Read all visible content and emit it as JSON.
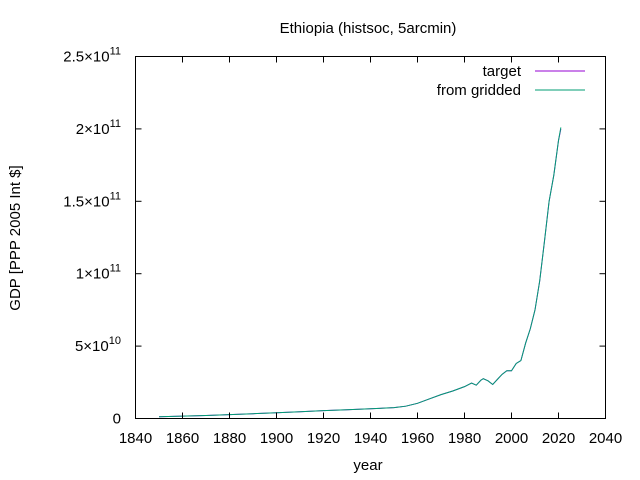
{
  "chart_data": {
    "type": "line",
    "title": "Ethiopia (histsoc, 5arcmin)",
    "xlabel": "year",
    "ylabel": "GDP [PPP 2005 Int $]",
    "xlim": [
      1840,
      2040
    ],
    "ylim": [
      0,
      250000000000
    ],
    "x_ticks": [
      1840,
      1860,
      1880,
      1900,
      1920,
      1940,
      1960,
      1980,
      2000,
      2020,
      2040
    ],
    "x_tick_labels": [
      "1840",
      "1860",
      "1880",
      "1900",
      "1920",
      "1940",
      "1960",
      "1980",
      "2000",
      "2020",
      "2040"
    ],
    "y_ticks": [
      0,
      50000000000,
      100000000000,
      150000000000,
      200000000000,
      250000000000
    ],
    "y_tick_labels": [
      {
        "mant": "0",
        "exp": ""
      },
      {
        "mant": "5×10",
        "exp": "10"
      },
      {
        "mant": "1×10",
        "exp": "11"
      },
      {
        "mant": "1.5×10",
        "exp": "11"
      },
      {
        "mant": "2×10",
        "exp": "11"
      },
      {
        "mant": "2.5×10",
        "exp": "11"
      }
    ],
    "grid": false,
    "legend_position": "top-right",
    "series": [
      {
        "name": "target",
        "color": "#9400d3",
        "x": [
          1850,
          1860,
          1870,
          1880,
          1890,
          1900,
          1910,
          1920,
          1930,
          1940,
          1950,
          1955,
          1960,
          1965,
          1970,
          1975,
          1980,
          1983,
          1985,
          1987,
          1988,
          1990,
          1992,
          1994,
          1996,
          1998,
          2000,
          2002,
          2004,
          2006,
          2008,
          2010,
          2012,
          2014,
          2016,
          2018,
          2020,
          2021
        ],
        "y": [
          1200000000,
          1600000000,
          2100000000,
          2700000000,
          3300000000,
          4000000000,
          4700000000,
          5400000000,
          6000000000,
          6700000000,
          7500000000,
          8500000000,
          10500000000,
          13500000000,
          16500000000,
          19000000000,
          22000000000,
          24500000000,
          23000000000,
          26500000000,
          27500000000,
          26000000000,
          23500000000,
          27000000000,
          30500000000,
          33000000000,
          33000000000,
          38000000000,
          40000000000,
          52000000000,
          62000000000,
          75000000000,
          95000000000,
          122000000000,
          150000000000,
          168000000000,
          192000000000,
          200000000000
        ]
      },
      {
        "name": "from gridded",
        "color": "#009e73",
        "x": [
          1850,
          1860,
          1870,
          1880,
          1890,
          1900,
          1910,
          1920,
          1930,
          1940,
          1950,
          1955,
          1960,
          1965,
          1970,
          1975,
          1980,
          1983,
          1985,
          1987,
          1988,
          1990,
          1992,
          1994,
          1996,
          1998,
          2000,
          2002,
          2004,
          2006,
          2008,
          2010,
          2012,
          2014,
          2016,
          2018,
          2020,
          2021
        ],
        "y": [
          1200000000,
          1600000000,
          2100000000,
          2700000000,
          3300000000,
          4000000000,
          4700000000,
          5400000000,
          6000000000,
          6700000000,
          7500000000,
          8500000000,
          10500000000,
          13500000000,
          16500000000,
          19000000000,
          22000000000,
          24500000000,
          23000000000,
          26500000000,
          27500000000,
          26000000000,
          23500000000,
          27000000000,
          30500000000,
          33000000000,
          33000000000,
          38000000000,
          40000000000,
          52000000000,
          62000000000,
          75000000000,
          95000000000,
          122000000000,
          150000000000,
          168000000000,
          192000000000,
          201000000000
        ]
      }
    ]
  }
}
